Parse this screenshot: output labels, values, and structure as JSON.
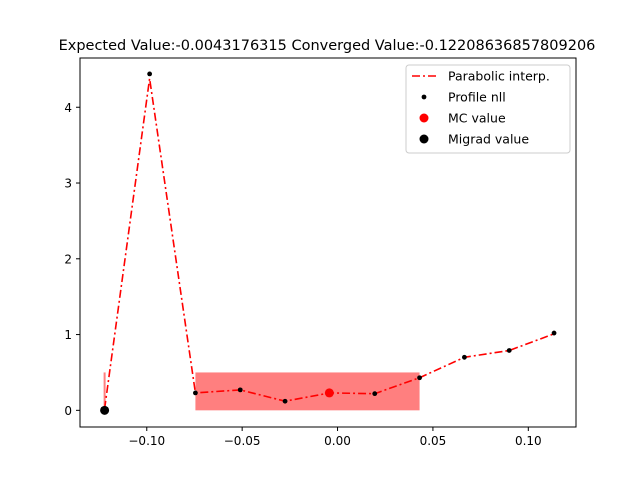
{
  "chart_data": {
    "type": "line",
    "title": "Expected Value:-0.0043176315 Converged Value:-0.12208636857809206",
    "xlabel": "",
    "ylabel": "",
    "xlim": [
      -0.135,
      0.125
    ],
    "ylim": [
      -0.22,
      4.65
    ],
    "x_ticks": [
      -0.1,
      -0.05,
      0.0,
      0.05,
      0.1
    ],
    "x_tick_labels": [
      "−0.10",
      "−0.05",
      "0.00",
      "0.05",
      "0.10"
    ],
    "y_ticks": [
      0,
      1,
      2,
      3,
      4
    ],
    "y_tick_labels": [
      "0",
      "1",
      "2",
      "3",
      "4"
    ],
    "grid": false,
    "legend_position": "top-right",
    "series": [
      {
        "name": "Parabolic interp.",
        "style": "dash-dot line",
        "color": "#ff0000",
        "x": [
          -0.1221,
          -0.0985,
          -0.0745,
          -0.051,
          -0.0275,
          -0.004,
          0.0195,
          0.043,
          0.0665,
          0.09,
          0.1135
        ],
        "y": [
          0.02,
          4.38,
          0.23,
          0.27,
          0.12,
          0.23,
          0.22,
          0.43,
          0.7,
          0.79,
          1.01
        ]
      },
      {
        "name": "Profile nll",
        "style": "small dots",
        "color": "#000000",
        "x": [
          -0.0985,
          -0.0745,
          -0.051,
          -0.0275,
          0.0195,
          0.043,
          0.0665,
          0.09,
          0.1135
        ],
        "y": [
          4.44,
          0.23,
          0.27,
          0.12,
          0.22,
          0.43,
          0.7,
          0.79,
          1.02
        ]
      },
      {
        "name": "MC value",
        "style": "large dot",
        "color": "#ff0000",
        "x": [
          -0.0043
        ],
        "y": [
          0.23
        ]
      },
      {
        "name": "Migrad value",
        "style": "large dot",
        "color": "#000000",
        "x": [
          -0.1221
        ],
        "y": [
          0.0
        ]
      }
    ],
    "shaded_region": {
      "color": "#ff0000",
      "x_start": -0.0745,
      "x_end": 0.043,
      "y_top": 0.5
    },
    "left_band": {
      "color": "#ff0000",
      "x": -0.1221,
      "y_top": 0.5
    }
  }
}
